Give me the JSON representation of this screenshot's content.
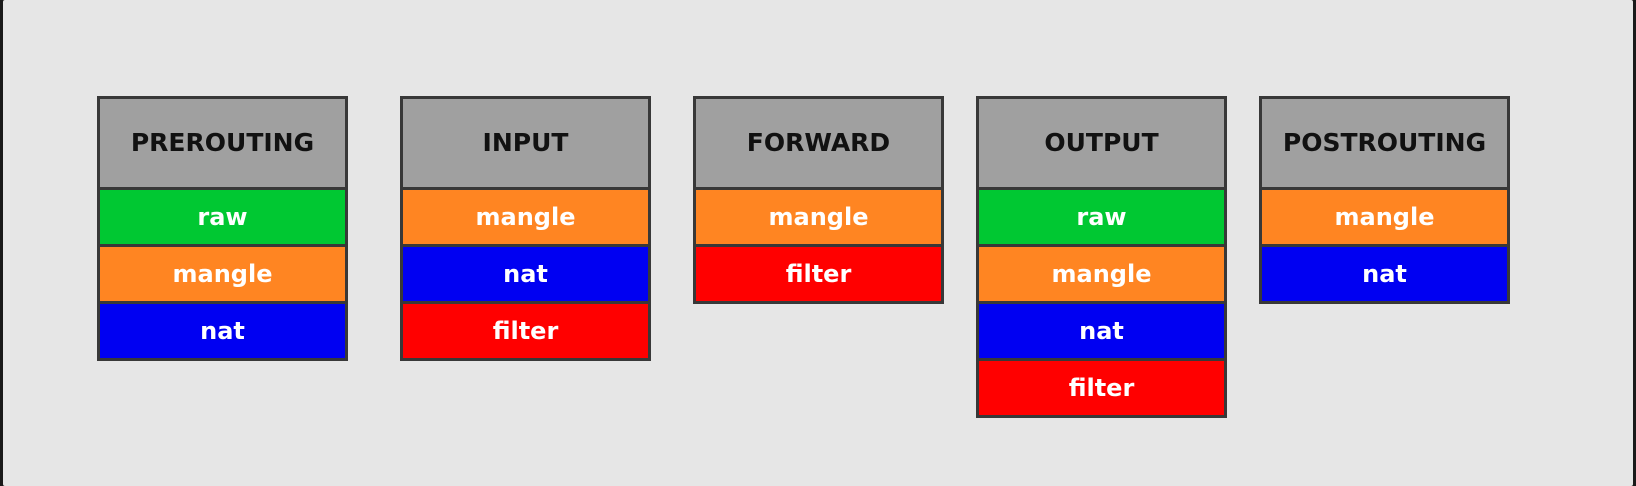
{
  "colors": {
    "raw": "#00c832",
    "mangle": "#ff8522",
    "nat": "#0000f2",
    "filter": "#ff0000",
    "header": "#a0a0a0"
  },
  "chains": [
    {
      "name": "PREROUTING",
      "tables": [
        "raw",
        "mangle",
        "nat"
      ]
    },
    {
      "name": "INPUT",
      "tables": [
        "mangle",
        "nat",
        "filter"
      ]
    },
    {
      "name": "FORWARD",
      "tables": [
        "mangle",
        "filter"
      ]
    },
    {
      "name": "OUTPUT",
      "tables": [
        "raw",
        "mangle",
        "nat",
        "filter"
      ]
    },
    {
      "name": "POSTROUTING",
      "tables": [
        "mangle",
        "nat"
      ]
    }
  ]
}
